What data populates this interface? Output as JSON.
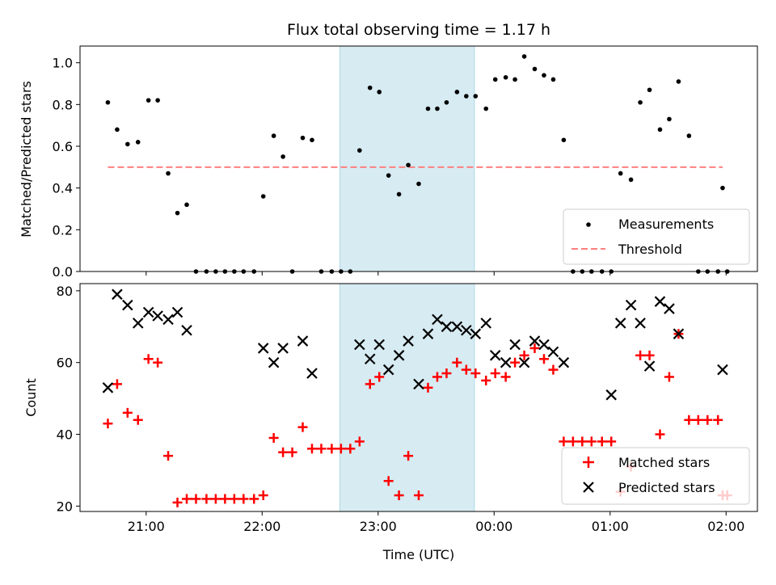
{
  "title": "Flux total observing time = 1.17 h",
  "xlabel": "Time (UTC)",
  "x_ticks": [
    "21:00",
    "22:00",
    "23:00",
    "00:00",
    "01:00",
    "02:00"
  ],
  "colors": {
    "measurement": "#000000",
    "threshold": "#ff7f7f",
    "matched": "#ff0000",
    "predicted": "#000000",
    "highlight": "#add8e6"
  },
  "chart_data": [
    {
      "type": "scatter",
      "ylabel": "Matched/Predicted stars",
      "x_unit": "hours after 20:00 UTC",
      "x_range": [
        0.43,
        6.27
      ],
      "ylim": [
        0.0,
        1.08
      ],
      "y_ticks": [
        "0.0",
        "0.2",
        "0.4",
        "0.6",
        "0.8",
        "1.0"
      ],
      "highlight_span": [
        2.67,
        3.83
      ],
      "threshold": {
        "name": "Threshold",
        "y": 0.5,
        "x": [
          0.67,
          5.97
        ]
      },
      "legend": {
        "position": "lower-right",
        "entries": [
          "Measurements",
          "Threshold"
        ]
      },
      "series": [
        {
          "name": "Measurements",
          "marker": "dot",
          "points": [
            [
              0.67,
              0.81
            ],
            [
              0.75,
              0.68
            ],
            [
              0.84,
              0.61
            ],
            [
              0.93,
              0.62
            ],
            [
              1.02,
              0.82
            ],
            [
              1.1,
              0.82
            ],
            [
              1.19,
              0.47
            ],
            [
              1.27,
              0.28
            ],
            [
              1.35,
              0.32
            ],
            [
              1.43,
              0.0
            ],
            [
              1.52,
              0.0
            ],
            [
              1.6,
              0.0
            ],
            [
              1.68,
              0.0
            ],
            [
              1.76,
              0.0
            ],
            [
              1.84,
              0.0
            ],
            [
              1.93,
              0.0
            ],
            [
              2.01,
              0.36
            ],
            [
              2.1,
              0.65
            ],
            [
              2.18,
              0.55
            ],
            [
              2.26,
              0.0
            ],
            [
              2.35,
              0.64
            ],
            [
              2.43,
              0.63
            ],
            [
              2.51,
              0.0
            ],
            [
              2.6,
              0.0
            ],
            [
              2.68,
              0.0
            ],
            [
              2.76,
              0.0
            ],
            [
              2.84,
              0.58
            ],
            [
              2.93,
              0.88
            ],
            [
              3.01,
              0.86
            ],
            [
              3.09,
              0.46
            ],
            [
              3.18,
              0.37
            ],
            [
              3.26,
              0.51
            ],
            [
              3.35,
              0.42
            ],
            [
              3.43,
              0.78
            ],
            [
              3.51,
              0.78
            ],
            [
              3.59,
              0.81
            ],
            [
              3.68,
              0.86
            ],
            [
              3.76,
              0.84
            ],
            [
              3.84,
              0.84
            ],
            [
              3.93,
              0.78
            ],
            [
              4.01,
              0.92
            ],
            [
              4.1,
              0.93
            ],
            [
              4.18,
              0.92
            ],
            [
              4.26,
              1.03
            ],
            [
              4.35,
              0.97
            ],
            [
              4.43,
              0.94
            ],
            [
              4.51,
              0.92
            ],
            [
              4.6,
              0.63
            ],
            [
              4.68,
              0.0
            ],
            [
              4.76,
              0.0
            ],
            [
              4.84,
              0.0
            ],
            [
              4.93,
              0.0
            ],
            [
              5.01,
              0.0
            ],
            [
              5.09,
              0.47
            ],
            [
              5.18,
              0.44
            ],
            [
              5.26,
              0.81
            ],
            [
              5.34,
              0.87
            ],
            [
              5.43,
              0.68
            ],
            [
              5.51,
              0.73
            ],
            [
              5.59,
              0.91
            ],
            [
              5.68,
              0.65
            ],
            [
              5.76,
              0.0
            ],
            [
              5.84,
              0.0
            ],
            [
              5.93,
              0.0
            ],
            [
              5.97,
              0.4
            ],
            [
              6.01,
              0.0
            ]
          ]
        }
      ]
    },
    {
      "type": "scatter",
      "ylabel": "Count",
      "x_unit": "hours after 20:00 UTC",
      "x_range": [
        0.43,
        6.27
      ],
      "ylim": [
        18.5,
        82
      ],
      "y_ticks": [
        "20",
        "40",
        "60",
        "80"
      ],
      "highlight_span": [
        2.67,
        3.83
      ],
      "legend": {
        "position": "lower-right",
        "entries": [
          "Matched stars",
          "Predicted stars"
        ]
      },
      "series": [
        {
          "name": "Matched stars",
          "marker": "plus",
          "points": [
            [
              0.67,
              43
            ],
            [
              0.75,
              54
            ],
            [
              0.84,
              46
            ],
            [
              0.93,
              44
            ],
            [
              1.02,
              61
            ],
            [
              1.1,
              60
            ],
            [
              1.19,
              34
            ],
            [
              1.27,
              21
            ],
            [
              1.35,
              22
            ],
            [
              1.43,
              22
            ],
            [
              1.52,
              22
            ],
            [
              1.6,
              22
            ],
            [
              1.68,
              22
            ],
            [
              1.76,
              22
            ],
            [
              1.84,
              22
            ],
            [
              1.93,
              22
            ],
            [
              2.01,
              23
            ],
            [
              2.1,
              39
            ],
            [
              2.18,
              35
            ],
            [
              2.26,
              35
            ],
            [
              2.35,
              42
            ],
            [
              2.43,
              36
            ],
            [
              2.51,
              36
            ],
            [
              2.6,
              36
            ],
            [
              2.68,
              36
            ],
            [
              2.76,
              36
            ],
            [
              2.84,
              38
            ],
            [
              2.93,
              54
            ],
            [
              3.01,
              56
            ],
            [
              3.09,
              27
            ],
            [
              3.18,
              23
            ],
            [
              3.26,
              34
            ],
            [
              3.35,
              23
            ],
            [
              3.43,
              53
            ],
            [
              3.51,
              56
            ],
            [
              3.59,
              57
            ],
            [
              3.68,
              60
            ],
            [
              3.76,
              58
            ],
            [
              3.84,
              57
            ],
            [
              3.93,
              55
            ],
            [
              4.01,
              57
            ],
            [
              4.1,
              56
            ],
            [
              4.18,
              60
            ],
            [
              4.26,
              62
            ],
            [
              4.35,
              64
            ],
            [
              4.43,
              61
            ],
            [
              4.51,
              58
            ],
            [
              4.6,
              38
            ],
            [
              4.68,
              38
            ],
            [
              4.76,
              38
            ],
            [
              4.84,
              38
            ],
            [
              4.93,
              38
            ],
            [
              5.01,
              38
            ],
            [
              5.09,
              24
            ],
            [
              5.18,
              31
            ],
            [
              5.26,
              62
            ],
            [
              5.34,
              62
            ],
            [
              5.43,
              40
            ],
            [
              5.51,
              56
            ],
            [
              5.59,
              68
            ],
            [
              5.68,
              44
            ],
            [
              5.76,
              44
            ],
            [
              5.84,
              44
            ],
            [
              5.93,
              44
            ],
            [
              5.97,
              23
            ],
            [
              6.01,
              23
            ]
          ]
        },
        {
          "name": "Predicted stars",
          "marker": "x",
          "points": [
            [
              0.67,
              53
            ],
            [
              0.75,
              79
            ],
            [
              0.84,
              76
            ],
            [
              0.93,
              71
            ],
            [
              1.02,
              74
            ],
            [
              1.1,
              73
            ],
            [
              1.19,
              72
            ],
            [
              1.27,
              74
            ],
            [
              1.35,
              69
            ],
            [
              2.01,
              64
            ],
            [
              2.1,
              60
            ],
            [
              2.18,
              64
            ],
            [
              2.35,
              66
            ],
            [
              2.43,
              57
            ],
            [
              2.84,
              65
            ],
            [
              2.93,
              61
            ],
            [
              3.01,
              65
            ],
            [
              3.09,
              58
            ],
            [
              3.18,
              62
            ],
            [
              3.26,
              66
            ],
            [
              3.35,
              54
            ],
            [
              3.43,
              68
            ],
            [
              3.51,
              72
            ],
            [
              3.59,
              70
            ],
            [
              3.68,
              70
            ],
            [
              3.76,
              69
            ],
            [
              3.84,
              68
            ],
            [
              3.93,
              71
            ],
            [
              4.01,
              62
            ],
            [
              4.1,
              60
            ],
            [
              4.18,
              65
            ],
            [
              4.26,
              60
            ],
            [
              4.35,
              66
            ],
            [
              4.43,
              65
            ],
            [
              4.51,
              63
            ],
            [
              4.6,
              60
            ],
            [
              5.01,
              51
            ],
            [
              5.09,
              71
            ],
            [
              5.18,
              76
            ],
            [
              5.26,
              71
            ],
            [
              5.34,
              59
            ],
            [
              5.43,
              77
            ],
            [
              5.51,
              75
            ],
            [
              5.59,
              68
            ],
            [
              5.97,
              58
            ]
          ]
        }
      ]
    }
  ]
}
